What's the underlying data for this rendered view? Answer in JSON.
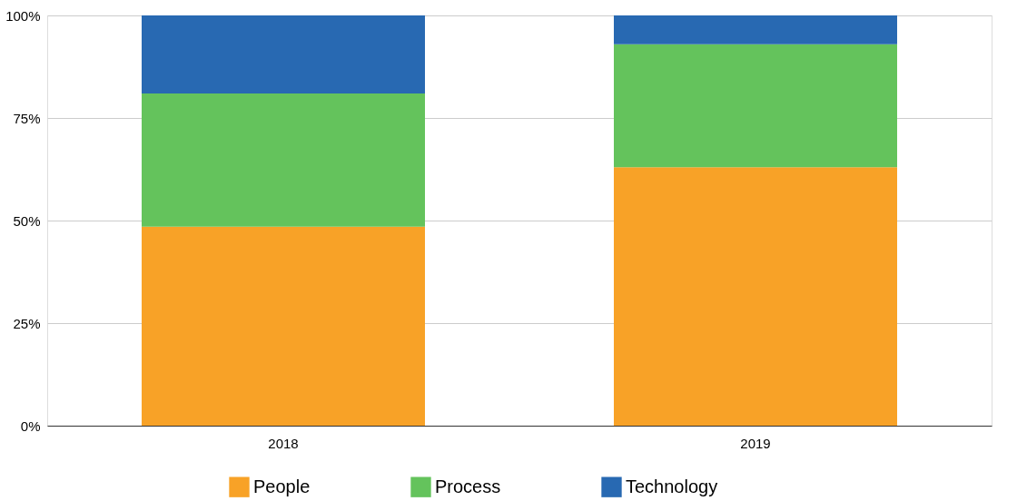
{
  "chart_data": {
    "type": "bar",
    "stacked": true,
    "categories": [
      "2018",
      "2019"
    ],
    "series": [
      {
        "name": "People",
        "color": "#f8a227",
        "values": [
          48.5,
          63
        ]
      },
      {
        "name": "Process",
        "color": "#64c35c",
        "values": [
          32.5,
          30
        ]
      },
      {
        "name": "Technology",
        "color": "#2869b2",
        "values": [
          19,
          7
        ]
      }
    ],
    "ylim": [
      0,
      100
    ],
    "yticks": [
      {
        "value": 0,
        "label": "0%"
      },
      {
        "value": 25,
        "label": "25%"
      },
      {
        "value": 50,
        "label": "50%"
      },
      {
        "value": 75,
        "label": "75%"
      },
      {
        "value": 100,
        "label": "100%"
      }
    ],
    "grid": "y",
    "legend": "bottom"
  }
}
